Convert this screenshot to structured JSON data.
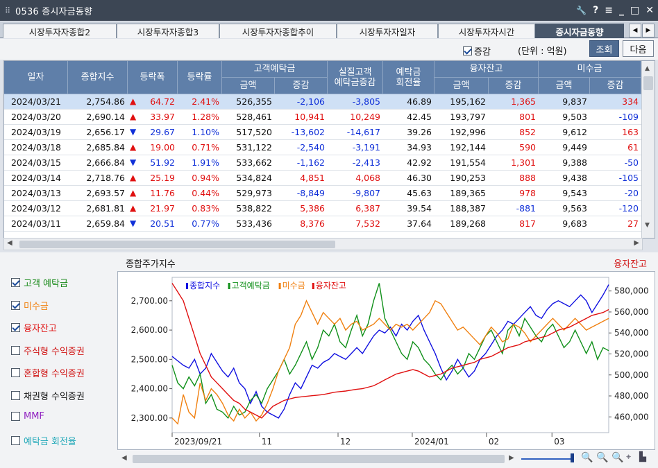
{
  "window": {
    "title": "0536 증시자금동향",
    "grip": "⠿",
    "controls": [
      "🔧",
      "?",
      "≡",
      "_",
      "□",
      "✕"
    ]
  },
  "tabs": [
    "시장투자자종합2",
    "시장투자자종합3",
    "시장투자자종합추이",
    "시장투자자일자",
    "시장투자자시간",
    "증시자금동향"
  ],
  "tab_nav": {
    "prev": "◀",
    "next": "▶"
  },
  "toolbar": {
    "change_label": "증감",
    "unit_label": "(단위 : 억원)",
    "query_button": "조회",
    "next_button": "다음"
  },
  "table": {
    "headers": {
      "date": "일자",
      "index": "종합지수",
      "change": "등락폭",
      "rate": "등락률",
      "deposit": "고객예탁금",
      "amount": "금액",
      "delta": "증감",
      "real_deposit": "실질고객\n예탁금증감",
      "turnover": "예탁금\n회전율",
      "margin": "융자잔고",
      "amount2": "금액",
      "delta2": "증감",
      "unpaid": "미수금",
      "amount3": "금액",
      "delta3": "증감"
    },
    "rows": [
      {
        "date": "2024/03/21",
        "index": "2,754.86",
        "dir": "up",
        "change": "64.72",
        "rate": "2.41%",
        "dep": "526,355",
        "dep_d": "-2,106",
        "real": "-3,805",
        "turn": "46.89",
        "mar": "195,162",
        "mar_d": "1,365",
        "unp": "9,837",
        "unp_d": "334"
      },
      {
        "date": "2024/03/20",
        "index": "2,690.14",
        "dir": "up",
        "change": "33.97",
        "rate": "1.28%",
        "dep": "528,461",
        "dep_d": "10,941",
        "real": "10,249",
        "turn": "42.45",
        "mar": "193,797",
        "mar_d": "801",
        "unp": "9,503",
        "unp_d": "-109"
      },
      {
        "date": "2024/03/19",
        "index": "2,656.17",
        "dir": "down",
        "change": "29.67",
        "rate": "1.10%",
        "dep": "517,520",
        "dep_d": "-13,602",
        "real": "-14,617",
        "turn": "39.26",
        "mar": "192,996",
        "mar_d": "852",
        "unp": "9,612",
        "unp_d": "163"
      },
      {
        "date": "2024/03/18",
        "index": "2,685.84",
        "dir": "up",
        "change": "19.00",
        "rate": "0.71%",
        "dep": "531,122",
        "dep_d": "-2,540",
        "real": "-3,191",
        "turn": "34.93",
        "mar": "192,144",
        "mar_d": "590",
        "unp": "9,449",
        "unp_d": "61"
      },
      {
        "date": "2024/03/15",
        "index": "2,666.84",
        "dir": "down",
        "change": "51.92",
        "rate": "1.91%",
        "dep": "533,662",
        "dep_d": "-1,162",
        "real": "-2,413",
        "turn": "42.92",
        "mar": "191,554",
        "mar_d": "1,301",
        "unp": "9,388",
        "unp_d": "-50"
      },
      {
        "date": "2024/03/14",
        "index": "2,718.76",
        "dir": "up",
        "change": "25.19",
        "rate": "0.94%",
        "dep": "534,824",
        "dep_d": "4,851",
        "real": "4,068",
        "turn": "46.30",
        "mar": "190,253",
        "mar_d": "888",
        "unp": "9,438",
        "unp_d": "-105"
      },
      {
        "date": "2024/03/13",
        "index": "2,693.57",
        "dir": "up",
        "change": "11.76",
        "rate": "0.44%",
        "dep": "529,973",
        "dep_d": "-8,849",
        "real": "-9,807",
        "turn": "45.63",
        "mar": "189,365",
        "mar_d": "978",
        "unp": "9,543",
        "unp_d": "-20"
      },
      {
        "date": "2024/03/12",
        "index": "2,681.81",
        "dir": "up",
        "change": "21.97",
        "rate": "0.83%",
        "dep": "538,822",
        "dep_d": "5,386",
        "real": "6,387",
        "turn": "39.54",
        "mar": "188,387",
        "mar_d": "-881",
        "unp": "9,563",
        "unp_d": "-120"
      },
      {
        "date": "2024/03/11",
        "index": "2,659.84",
        "dir": "down",
        "change": "20.51",
        "rate": "0.77%",
        "dep": "533,436",
        "dep_d": "8,376",
        "real": "7,532",
        "turn": "37.64",
        "mar": "189,268",
        "mar_d": "817",
        "unp": "9,683",
        "unp_d": "27"
      }
    ]
  },
  "legend": [
    {
      "label": "고객 예탁금",
      "checked": true,
      "color": "#1a8a1a"
    },
    {
      "label": "미수금",
      "checked": true,
      "color": "#f08010"
    },
    {
      "label": "융자잔고",
      "checked": true,
      "color": "#e01010"
    },
    {
      "label": "주식형 수익증권",
      "checked": false,
      "color": "#d01010"
    },
    {
      "label": "혼합형 수익증권",
      "checked": false,
      "color": "#d01010"
    },
    {
      "label": "채권형 수익증권",
      "checked": false,
      "color": "#111111"
    },
    {
      "label": "MMF",
      "checked": false,
      "color": "#9020c0"
    },
    {
      "label": "예탁금 회전율",
      "checked": false,
      "color": "#20a8b8"
    }
  ],
  "chart_data": {
    "type": "line",
    "title": "종합주가지수",
    "right_title": "융자잔고",
    "left_ticks": [
      "2,700.00",
      "2,600.00",
      "2,500.00",
      "2,400.00",
      "2,300.00"
    ],
    "left_range": [
      2250,
      2780
    ],
    "right_ticks": [
      "580,000",
      "560,000",
      "540,000",
      "520,000",
      "500,000",
      "480,000",
      "460,000"
    ],
    "right_range": [
      445000,
      593000
    ],
    "x_ticks": [
      "2023/09/21",
      "11",
      "12",
      "2024/01",
      "02",
      "03"
    ],
    "series": [
      {
        "name": "종합지수",
        "color": "#1010e0",
        "axis": "left",
        "values": [
          2510,
          2495,
          2480,
          2470,
          2500,
          2450,
          2470,
          2520,
          2490,
          2460,
          2440,
          2470,
          2420,
          2400,
          2350,
          2390,
          2340,
          2320,
          2310,
          2300,
          2330,
          2380,
          2420,
          2400,
          2440,
          2480,
          2470,
          2490,
          2500,
          2520,
          2510,
          2500,
          2520,
          2540,
          2520,
          2550,
          2580,
          2600,
          2590,
          2610,
          2580,
          2620,
          2600,
          2630,
          2650,
          2600,
          2560,
          2520,
          2470,
          2430,
          2460,
          2500,
          2470,
          2440,
          2460,
          2500,
          2520,
          2550,
          2580,
          2600,
          2630,
          2620,
          2640,
          2660,
          2680,
          2650,
          2640,
          2670,
          2690,
          2700,
          2690,
          2680,
          2700,
          2720,
          2700,
          2660,
          2690,
          2720,
          2755
        ]
      },
      {
        "name": "고객예탁금",
        "color": "#10901a",
        "axis": "left",
        "values": [
          2480,
          2420,
          2400,
          2440,
          2410,
          2450,
          2350,
          2380,
          2330,
          2320,
          2300,
          2340,
          2310,
          2320,
          2360,
          2380,
          2350,
          2400,
          2430,
          2460,
          2500,
          2450,
          2480,
          2520,
          2560,
          2500,
          2540,
          2600,
          2580,
          2620,
          2560,
          2540,
          2600,
          2650,
          2580,
          2620,
          2700,
          2760,
          2640,
          2600,
          2560,
          2520,
          2500,
          2560,
          2540,
          2500,
          2480,
          2450,
          2430,
          2460,
          2480,
          2450,
          2470,
          2520,
          2500,
          2540,
          2580,
          2600,
          2560,
          2520,
          2600,
          2620,
          2580,
          2640,
          2610,
          2580,
          2560,
          2600,
          2620,
          2580,
          2540,
          2560,
          2600,
          2560,
          2520,
          2560,
          2500,
          2540,
          2530
        ]
      },
      {
        "name": "미수금",
        "color": "#f08010",
        "axis": "left",
        "values": [
          2300,
          2280,
          2380,
          2320,
          2300,
          2420,
          2360,
          2400,
          2380,
          2350,
          2310,
          2290,
          2330,
          2300,
          2320,
          2290,
          2310,
          2350,
          2400,
          2460,
          2500,
          2540,
          2620,
          2650,
          2700,
          2660,
          2620,
          2660,
          2640,
          2620,
          2640,
          2600,
          2620,
          2630,
          2600,
          2610,
          2620,
          2640,
          2620,
          2600,
          2620,
          2610,
          2620,
          2600,
          2620,
          2640,
          2660,
          2700,
          2690,
          2660,
          2630,
          2600,
          2610,
          2590,
          2570,
          2550,
          2580,
          2610,
          2590,
          2560,
          2570,
          2620,
          2610,
          2590,
          2560,
          2580,
          2600,
          2620,
          2640,
          2620,
          2600,
          2620,
          2640,
          2620,
          2600,
          2610,
          2620,
          2630,
          2640
        ]
      },
      {
        "name": "융자잔고",
        "color": "#e01010",
        "axis": "left",
        "values": [
          2760,
          2730,
          2700,
          2640,
          2580,
          2520,
          2480,
          2440,
          2420,
          2400,
          2380,
          2360,
          2350,
          2330,
          2320,
          2310,
          2300,
          2320,
          2340,
          2350,
          2360,
          2365,
          2370,
          2372,
          2374,
          2376,
          2378,
          2380,
          2384,
          2388,
          2390,
          2392,
          2395,
          2398,
          2400,
          2405,
          2410,
          2420,
          2430,
          2440,
          2450,
          2455,
          2460,
          2465,
          2460,
          2450,
          2440,
          2445,
          2450,
          2460,
          2470,
          2475,
          2480,
          2485,
          2490,
          2500,
          2505,
          2510,
          2520,
          2530,
          2540,
          2545,
          2550,
          2560,
          2565,
          2570,
          2575,
          2580,
          2590,
          2600,
          2605,
          2610,
          2620,
          2630,
          2640,
          2650,
          2655,
          2660,
          2670
        ]
      }
    ]
  },
  "bottom": {
    "left_arrow": "◀",
    "right_arrow": "▶"
  }
}
